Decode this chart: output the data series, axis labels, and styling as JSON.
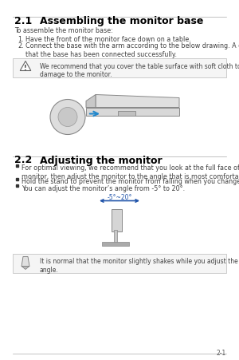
{
  "bg_color": "#ffffff",
  "page_num": "2-1",
  "section1_num": "2.1",
  "section1_title": "Assembling the monitor base",
  "section1_intro": "To assemble the monitor base:",
  "section1_steps": [
    "Have the front of the monitor face down on a table.",
    "Connect the base with the arm according to the below drawing. A click shows\nthat the base has been connected successfully."
  ],
  "warning_text": "We recommend that you cover the table surface with soft cloth to prevent\ndamage to the monitor.",
  "section2_num": "2.2",
  "section2_title": "Adjusting the monitor",
  "section2_bullets": [
    "For optimal viewing, we recommend that you look at the full face of the\nmonitor, then adjust the monitor to the angle that is most comfortable for you.",
    "Hold the stand to prevent the monitor from falling when you change its angle.",
    "You can adjust the monitor’s angle from -5° to 20°."
  ],
  "angle_label": "-5°~20°",
  "note_text": "It is normal that the monitor slightly shakes while you adjust the the viewing\nangle.",
  "title_fontsize": 9,
  "body_fontsize": 5.8,
  "title_color": "#000000",
  "body_color": "#404040"
}
